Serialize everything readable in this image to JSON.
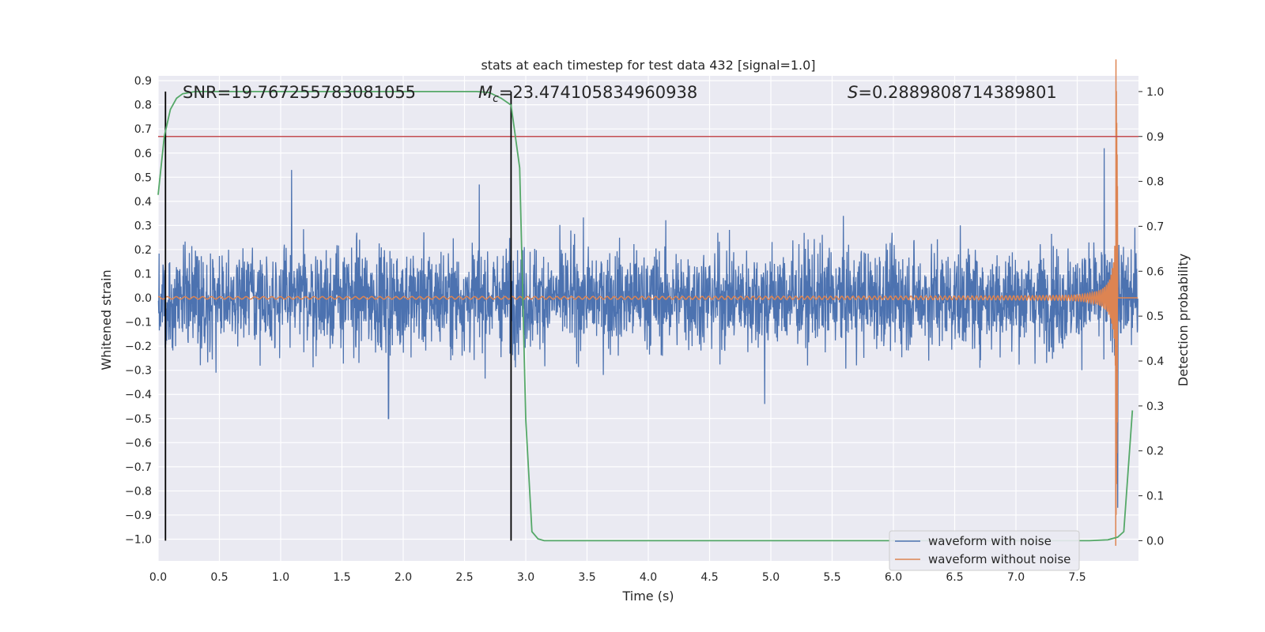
{
  "chart_data": {
    "type": "line",
    "title": "stats at each timestep for test data 432 [signal=1.0]",
    "xlabel": "Time (s)",
    "ylabel": "Whitened strain",
    "y2label": "Detection probability",
    "xlim": [
      0.0,
      8.0
    ],
    "ylim": [
      -1.09,
      0.92
    ],
    "y2lim": [
      -0.045,
      1.035
    ],
    "grid": true,
    "legend_position": "lower-right",
    "xticks": [
      "0.0",
      "0.5",
      "1.0",
      "1.5",
      "2.0",
      "2.5",
      "3.0",
      "3.5",
      "4.0",
      "4.5",
      "5.0",
      "5.5",
      "6.0",
      "6.5",
      "7.0",
      "7.5"
    ],
    "yticks": [
      "0.9",
      "0.8",
      "0.7",
      "0.6",
      "0.5",
      "0.4",
      "0.3",
      "0.2",
      "0.1",
      "0.0",
      "−0.1",
      "−0.2",
      "−0.3",
      "−0.4",
      "−0.5",
      "−0.6",
      "−0.7",
      "−0.8",
      "−0.9",
      "−1.0"
    ],
    "y2ticks": [
      "1.0",
      "0.9",
      "0.8",
      "0.7",
      "0.6",
      "0.5",
      "0.4",
      "0.3",
      "0.2",
      "0.1",
      "0.0"
    ],
    "annotations": {
      "snr": "SNR=19.767255783081055",
      "mc_symbol": "M",
      "mc_sub": "c",
      "mc_value": "=23.474105834960938",
      "s_symbol": "S",
      "s_value": "=0.2889808714389801"
    },
    "threshold_prob": 0.9,
    "vertical_markers": [
      0.06,
      2.88
    ],
    "series": [
      {
        "name": "waveform with noise",
        "color": "#4c72b0",
        "kind": "noise",
        "typical_amplitude": 0.22,
        "peak_spikes": [
          [
            1.09,
            0.53
          ],
          [
            2.62,
            0.47
          ],
          [
            7.72,
            0.62
          ],
          [
            1.88,
            -0.5
          ],
          [
            4.95,
            -0.44
          ],
          [
            7.83,
            -0.87
          ]
        ]
      },
      {
        "name": "waveform without noise",
        "color": "#dd8452",
        "kind": "chirp",
        "start_amplitude": 0.005,
        "merger_time": 7.83,
        "peak": 0.82,
        "trough": -0.8
      },
      {
        "name": "",
        "color": "#55a868",
        "axis": "right",
        "x": [
          0.0,
          0.05,
          0.1,
          0.15,
          0.2,
          0.3,
          0.4,
          0.6,
          2.6,
          2.7,
          2.8,
          2.88,
          2.95,
          3.0,
          3.05,
          3.1,
          3.15,
          3.3,
          7.6,
          7.75,
          7.83,
          7.88,
          7.95
        ],
        "y": [
          0.77,
          0.9,
          0.96,
          0.985,
          0.995,
          1.0,
          1.0,
          1.0,
          1.0,
          0.998,
          0.985,
          0.97,
          0.83,
          0.27,
          0.02,
          0.004,
          0.0,
          0.0,
          0.0,
          0.002,
          0.008,
          0.02,
          0.29
        ]
      }
    ]
  },
  "colors": {
    "plot_bg": "#eaeaf2",
    "grid": "#ffffff",
    "threshold": "#c44e52",
    "marker": "#000000"
  }
}
